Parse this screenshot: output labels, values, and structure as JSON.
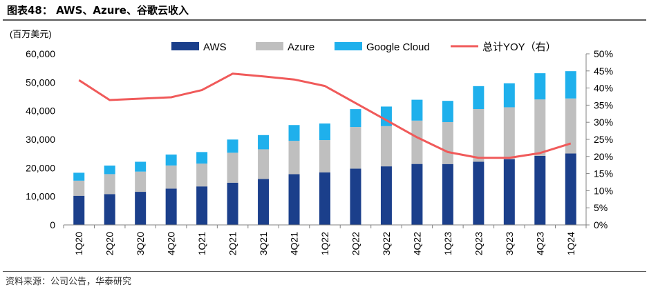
{
  "header": {
    "title": "图表48： AWS、Azure、谷歌云收入"
  },
  "footer": {
    "source": "资料来源：公司公告，华泰研究"
  },
  "colors": {
    "aws": "#1b3f8b",
    "azure": "#bfbfbf",
    "google": "#1fb0ec",
    "yoy": "#f05a5a",
    "header_rule": "#5a5a5a"
  },
  "chart_data": {
    "type": "bar",
    "stacked": true,
    "unit_label": "(百万美元)",
    "categories": [
      "1Q20",
      "2Q20",
      "3Q20",
      "4Q20",
      "1Q21",
      "2Q21",
      "3Q21",
      "4Q21",
      "1Q22",
      "2Q22",
      "3Q22",
      "4Q22",
      "1Q23",
      "2Q23",
      "3Q23",
      "4Q23",
      "1Q24"
    ],
    "series": [
      {
        "name": "AWS",
        "type": "bar",
        "axis": "left",
        "color": "#1b3f8b",
        "values": [
          10219,
          10808,
          11601,
          12742,
          13503,
          14809,
          16110,
          17780,
          18441,
          19739,
          20538,
          21378,
          21354,
          22140,
          23059,
          24204,
          25037
        ]
      },
      {
        "name": "Azure",
        "type": "bar",
        "axis": "left",
        "color": "#bfbfbf",
        "values": [
          5300,
          7000,
          7100,
          8100,
          8000,
          10500,
          10400,
          11700,
          11300,
          14600,
          14100,
          15200,
          14700,
          18500,
          18200,
          19800,
          19300
        ]
      },
      {
        "name": "Google Cloud",
        "type": "bar",
        "axis": "left",
        "color": "#1fb0ec",
        "values": [
          2777,
          3007,
          3444,
          3831,
          4047,
          4628,
          4990,
          5541,
          5821,
          6276,
          6868,
          7315,
          7454,
          8031,
          8411,
          9192,
          9574
        ]
      },
      {
        "name": "总计YOY（右）",
        "type": "line",
        "axis": "right",
        "color": "#f05a5a",
        "values": [
          42.3,
          36.5,
          36.9,
          37.3,
          39.4,
          44.2,
          43.4,
          42.5,
          40.6,
          35.6,
          30.6,
          25.6,
          21.3,
          19.6,
          19.6,
          21.0,
          23.8
        ]
      }
    ],
    "y_left": {
      "min": 0,
      "max": 60000,
      "step": 10000,
      "ticks": [
        "0",
        "10,000",
        "20,000",
        "30,000",
        "40,000",
        "50,000",
        "60,000"
      ]
    },
    "y_right": {
      "min": 0,
      "max": 50,
      "step": 5,
      "ticks": [
        "0%",
        "5%",
        "10%",
        "15%",
        "20%",
        "25%",
        "30%",
        "35%",
        "40%",
        "45%",
        "50%"
      ]
    },
    "grid": false,
    "legend_position": "top"
  }
}
